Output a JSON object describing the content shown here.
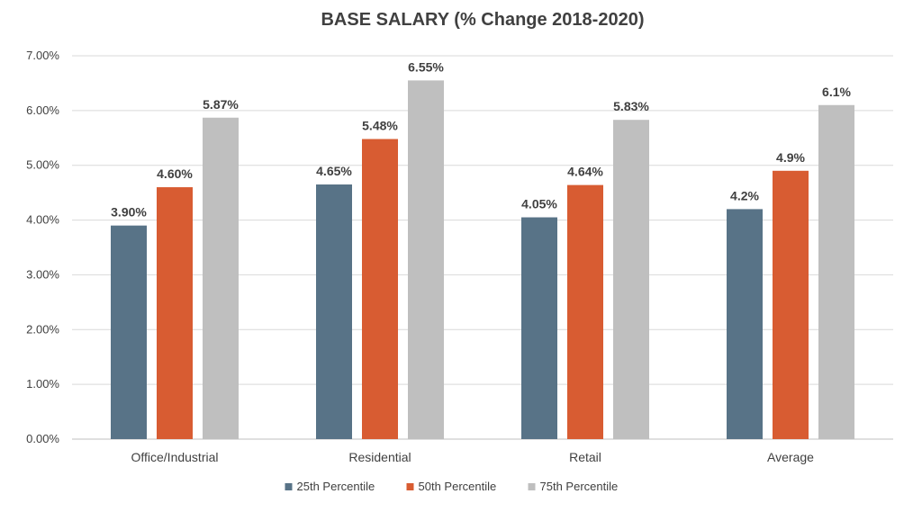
{
  "chart_data": {
    "type": "bar",
    "title": "BASE SALARY (% Change 2018-2020)",
    "xlabel": "",
    "ylabel": "",
    "categories": [
      "Office/Industrial",
      "Residential",
      "Retail",
      "Average"
    ],
    "ylim": [
      0,
      7
    ],
    "yticks": [
      {
        "value": 0,
        "label": "0.00%"
      },
      {
        "value": 1,
        "label": "1.00%"
      },
      {
        "value": 2,
        "label": "2.00%"
      },
      {
        "value": 3,
        "label": "3.00%"
      },
      {
        "value": 4,
        "label": "4.00%"
      },
      {
        "value": 5,
        "label": "5.00%"
      },
      {
        "value": 6,
        "label": "6.00%"
      },
      {
        "value": 7,
        "label": "7.00%"
      }
    ],
    "grid": true,
    "legend_position": "bottom",
    "series": [
      {
        "name": "25th Percentile",
        "color": "#587387",
        "values": [
          3.9,
          4.65,
          4.05,
          4.2
        ],
        "labels": [
          "3.90%",
          "4.65%",
          "4.05%",
          "4.2%"
        ]
      },
      {
        "name": "50th Percentile",
        "color": "#d85c32",
        "values": [
          4.6,
          5.48,
          4.64,
          4.9
        ],
        "labels": [
          "4.60%",
          "5.48%",
          "4.64%",
          "4.9%"
        ]
      },
      {
        "name": "75th Percentile",
        "color": "#bfbfbf",
        "values": [
          5.87,
          6.55,
          5.83,
          6.1
        ],
        "labels": [
          "5.87%",
          "6.55%",
          "5.83%",
          "6.1%"
        ]
      }
    ]
  }
}
